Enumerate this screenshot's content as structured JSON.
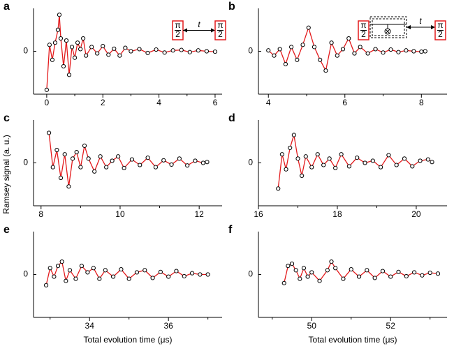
{
  "y_label": "Ramsey signal (a. u.)",
  "chart_data": [
    {
      "type": "line",
      "label": "a",
      "line_color": "#e31a1c",
      "marker_fill": "#ffffff",
      "marker_edge": "#000000",
      "x": [
        0,
        0.1,
        0.2,
        0.3,
        0.4,
        0.45,
        0.5,
        0.6,
        0.7,
        0.8,
        0.9,
        1.0,
        1.1,
        1.2,
        1.3,
        1.4,
        1.6,
        1.8,
        2.0,
        2.2,
        2.4,
        2.6,
        2.8,
        3.0,
        3.3,
        3.6,
        3.9,
        4.2,
        4.5,
        4.8,
        5.1,
        5.4,
        5.7,
        6.0
      ],
      "values": [
        -0.9,
        0.15,
        -0.2,
        0.2,
        0.5,
        0.85,
        0.3,
        -0.35,
        0.25,
        -0.55,
        0.1,
        -0.15,
        0.2,
        0.05,
        0.3,
        -0.1,
        0.1,
        -0.05,
        0.12,
        -0.08,
        0.06,
        -0.1,
        0.08,
        0.0,
        0.05,
        -0.04,
        0.04,
        -0.03,
        0.02,
        0.03,
        -0.02,
        0.02,
        0.0,
        -0.01
      ],
      "xlim": [
        -0.47,
        6.25
      ],
      "ylim": [
        -1,
        1
      ],
      "xticks": [
        0,
        2,
        4,
        6
      ],
      "xminor": [
        1,
        3,
        5
      ],
      "yticks": [
        0
      ],
      "inset": {
        "pulses": [
          {
            "num": "π",
            "den": "2"
          },
          {
            "num": "π",
            "den": "2"
          }
        ],
        "delay": "t"
      }
    },
    {
      "type": "line",
      "label": "b",
      "line_color": "#e31a1c",
      "marker_fill": "#ffffff",
      "marker_edge": "#000000",
      "x": [
        4.0,
        4.15,
        4.3,
        4.45,
        4.6,
        4.75,
        4.9,
        5.05,
        5.2,
        5.35,
        5.5,
        5.65,
        5.8,
        5.95,
        6.1,
        6.25,
        6.4,
        6.6,
        6.8,
        7.0,
        7.2,
        7.4,
        7.6,
        7.8,
        8.0,
        8.1
      ],
      "values": [
        0.02,
        -0.1,
        0.05,
        -0.3,
        0.1,
        -0.2,
        0.15,
        0.55,
        0.1,
        -0.2,
        -0.45,
        0.2,
        -0.1,
        0.05,
        0.3,
        -0.05,
        0.1,
        -0.05,
        0.05,
        -0.03,
        0.04,
        -0.02,
        0.02,
        0.0,
        -0.01,
        0.0
      ],
      "xlim": [
        3.74,
        8.67
      ],
      "ylim": [
        -1,
        1
      ],
      "xticks": [
        4,
        6,
        8
      ],
      "xminor": [
        5,
        7
      ],
      "yticks": [
        0
      ],
      "inset": {
        "pulses": [
          {
            "num": "π",
            "den": "2"
          },
          {
            "num": "π",
            "den": "2"
          }
        ],
        "delay": "t"
      }
    },
    {
      "type": "line",
      "label": "c",
      "line_color": "#e31a1c",
      "marker_fill": "#ffffff",
      "marker_edge": "#000000",
      "x": [
        8.2,
        8.3,
        8.4,
        8.5,
        8.6,
        8.7,
        8.8,
        8.9,
        9.0,
        9.1,
        9.2,
        9.35,
        9.5,
        9.65,
        9.8,
        9.95,
        10.1,
        10.3,
        10.5,
        10.7,
        10.9,
        11.1,
        11.3,
        11.5,
        11.7,
        11.9,
        12.1,
        12.2
      ],
      "values": [
        0.7,
        -0.1,
        0.3,
        -0.35,
        0.2,
        -0.55,
        0.1,
        0.25,
        -0.1,
        0.4,
        0.1,
        -0.2,
        0.15,
        -0.1,
        0.05,
        0.15,
        -0.12,
        0.08,
        -0.05,
        0.12,
        -0.1,
        0.06,
        -0.04,
        0.1,
        -0.06,
        0.05,
        0.0,
        0.02
      ],
      "xlim": [
        7.81,
        12.58
      ],
      "ylim": [
        -1,
        1
      ],
      "xticks": [
        8,
        10,
        12
      ],
      "xminor": [
        9,
        11
      ],
      "yticks": [
        0
      ]
    },
    {
      "type": "line",
      "label": "d",
      "line_color": "#e31a1c",
      "marker_fill": "#ffffff",
      "marker_edge": "#000000",
      "x": [
        16.5,
        16.6,
        16.7,
        16.8,
        16.9,
        17.0,
        17.1,
        17.2,
        17.35,
        17.5,
        17.65,
        17.8,
        17.95,
        18.1,
        18.3,
        18.5,
        18.7,
        18.9,
        19.1,
        19.3,
        19.5,
        19.7,
        19.9,
        20.1,
        20.3,
        20.4
      ],
      "values": [
        -0.6,
        0.2,
        -0.15,
        0.35,
        0.65,
        0.1,
        -0.3,
        0.15,
        -0.1,
        0.2,
        -0.05,
        0.1,
        -0.12,
        0.2,
        -0.08,
        0.12,
        0.0,
        0.05,
        -0.1,
        0.18,
        -0.05,
        0.1,
        -0.08,
        0.05,
        0.08,
        0.02
      ],
      "xlim": [
        16,
        20.78
      ],
      "ylim": [
        -1,
        1
      ],
      "xticks": [
        16,
        18,
        20
      ],
      "xminor": [
        17,
        19
      ],
      "yticks": [
        0
      ]
    },
    {
      "type": "line",
      "label": "e",
      "line_color": "#e31a1c",
      "marker_fill": "#ffffff",
      "marker_edge": "#000000",
      "x": [
        32.9,
        33.0,
        33.1,
        33.2,
        33.3,
        33.4,
        33.5,
        33.65,
        33.8,
        33.95,
        34.1,
        34.25,
        34.4,
        34.6,
        34.8,
        35.0,
        35.2,
        35.4,
        35.6,
        35.8,
        36.0,
        36.2,
        36.4,
        36.6,
        36.8,
        37.0
      ],
      "values": [
        -0.25,
        0.15,
        -0.05,
        0.2,
        0.3,
        -0.15,
        0.1,
        -0.1,
        0.2,
        0.05,
        0.15,
        -0.1,
        0.1,
        -0.05,
        0.12,
        -0.1,
        0.05,
        0.1,
        -0.08,
        0.06,
        -0.05,
        0.08,
        -0.04,
        0.03,
        0.0,
        0.0
      ],
      "xlim": [
        32.58,
        37.36
      ],
      "ylim": [
        -1,
        1
      ],
      "xticks": [
        34,
        36
      ],
      "xminor": [
        33,
        35,
        37
      ],
      "yticks": [
        0
      ],
      "xlabel": "Total evolution time (μs)"
    },
    {
      "type": "line",
      "label": "f",
      "line_color": "#e31a1c",
      "marker_fill": "#ffffff",
      "marker_edge": "#000000",
      "x": [
        49.3,
        49.4,
        49.5,
        49.6,
        49.7,
        49.8,
        49.9,
        50.0,
        50.2,
        50.4,
        50.5,
        50.6,
        50.8,
        51.0,
        51.2,
        51.4,
        51.6,
        51.8,
        52.0,
        52.2,
        52.4,
        52.6,
        52.8,
        53.0,
        53.2
      ],
      "values": [
        -0.2,
        0.2,
        0.25,
        0.1,
        -0.1,
        0.15,
        -0.05,
        0.05,
        -0.15,
        0.1,
        0.3,
        0.15,
        -0.1,
        0.12,
        -0.05,
        0.1,
        -0.08,
        0.08,
        -0.05,
        0.06,
        -0.04,
        0.05,
        -0.02,
        0.04,
        0.02
      ],
      "xlim": [
        48.65,
        53.43
      ],
      "ylim": [
        -1,
        1
      ],
      "xticks": [
        50,
        52
      ],
      "xminor": [
        49,
        51,
        53
      ],
      "yticks": [
        0
      ],
      "xlabel": "Total evolution time (μs)"
    }
  ]
}
